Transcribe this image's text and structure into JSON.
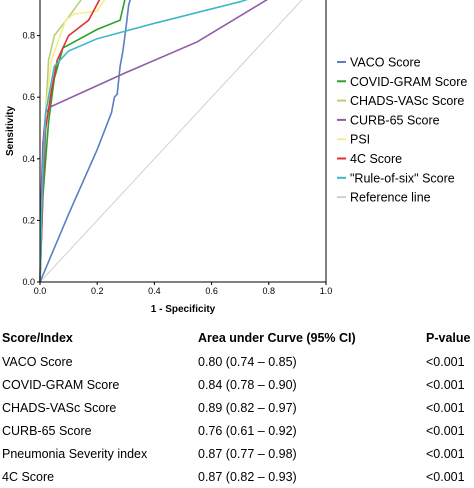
{
  "chart_data": {
    "type": "line",
    "xlabel": "1 - Specificity",
    "ylabel": "Sensitivity",
    "xlim": [
      0,
      1.0
    ],
    "ylim": [
      0,
      1.0
    ],
    "x_ticks": [
      "0.0",
      "0.2",
      "0.4",
      "0.6",
      "0.8",
      "1.0"
    ],
    "y_ticks": [
      "0.0",
      "0.2",
      "0.4",
      "0.6",
      "0.8"
    ],
    "grid": false,
    "legend_position": "right",
    "series": [
      {
        "name": "VACO Score",
        "color": "#5b7fbf",
        "x": [
          0,
          0.1,
          0.2,
          0.25,
          0.26,
          0.27,
          0.28,
          0.29,
          0.3,
          0.31,
          0.33,
          0.34,
          1.0
        ],
        "y": [
          0,
          0.22,
          0.43,
          0.55,
          0.6,
          0.61,
          0.7,
          0.75,
          0.82,
          0.9,
          0.96,
          1.0,
          1.0
        ]
      },
      {
        "name": "COVID-GRAM Score",
        "color": "#2ca02c",
        "x": [
          0,
          0.01,
          0.03,
          0.05,
          0.08,
          0.12,
          0.2,
          0.28,
          0.3,
          0.32,
          0.34,
          1.0
        ],
        "y": [
          0,
          0.28,
          0.52,
          0.66,
          0.76,
          0.78,
          0.82,
          0.85,
          0.93,
          0.97,
          1.0,
          1.0
        ]
      },
      {
        "name": "CHADS-VASc Score",
        "color": "#b7cf7a",
        "x": [
          0,
          0.01,
          0.02,
          0.03,
          0.05,
          0.1,
          0.17,
          0.26,
          0.42,
          0.67,
          1.0
        ],
        "y": [
          0,
          0.35,
          0.55,
          0.72,
          0.8,
          0.86,
          0.95,
          0.975,
          0.985,
          0.99,
          1.0
        ]
      },
      {
        "name": "CURB-65 Score",
        "color": "#8e5ca8",
        "x": [
          0,
          0.005,
          0.01,
          0.02,
          0.04,
          0.3,
          0.55,
          0.8,
          1.0
        ],
        "y": [
          0,
          0.3,
          0.45,
          0.55,
          0.57,
          0.68,
          0.78,
          0.92,
          1.0
        ]
      },
      {
        "name": "PSI",
        "color": "#f5ef8a",
        "x": [
          0,
          0.01,
          0.02,
          0.04,
          0.09,
          0.12,
          0.2,
          0.25,
          0.43,
          0.6,
          0.7,
          1.0
        ],
        "y": [
          0,
          0.35,
          0.55,
          0.72,
          0.85,
          0.87,
          0.88,
          0.95,
          0.97,
          0.98,
          1.0,
          1.0
        ]
      },
      {
        "name": "4C Score",
        "color": "#e03030",
        "x": [
          0,
          0.01,
          0.02,
          0.04,
          0.06,
          0.1,
          0.17,
          0.21,
          0.28,
          0.48,
          1.0
        ],
        "y": [
          0,
          0.3,
          0.5,
          0.62,
          0.72,
          0.8,
          0.85,
          0.92,
          0.97,
          1.0,
          1.0
        ]
      },
      {
        "name": "\"Rule-of-six\" Score",
        "color": "#3fb8c6",
        "x": [
          0,
          0.005,
          0.01,
          0.02,
          0.05,
          0.1,
          0.2,
          0.4,
          0.7,
          1.0
        ],
        "y": [
          0,
          0.2,
          0.35,
          0.55,
          0.7,
          0.75,
          0.79,
          0.84,
          0.91,
          1.0
        ]
      },
      {
        "name": "Reference line",
        "color": "#d0d0d0",
        "x": [
          0,
          1.0
        ],
        "y": [
          0,
          1.0
        ]
      }
    ]
  },
  "table": {
    "headers": [
      "Score/Index",
      "Area under Curve (95% CI)",
      "P-value"
    ],
    "rows": [
      [
        "VACO Score",
        "0.80 (0.74 – 0.85)",
        "<0.001"
      ],
      [
        "COVID-GRAM Score",
        "0.84 (0.78 – 0.90)",
        "<0.001"
      ],
      [
        "CHADS-VASc Score",
        "0.89 (0.82 – 0.97)",
        "<0.001"
      ],
      [
        "CURB-65 Score",
        "0.76 (0.61 – 0.92)",
        "<0.001"
      ],
      [
        "Pneumonia Severity index",
        "0.87 (0.77 – 0.98)",
        "<0.001"
      ],
      [
        "4C Score",
        "0.87 (0.82 – 0.93)",
        "<0.001"
      ]
    ]
  }
}
